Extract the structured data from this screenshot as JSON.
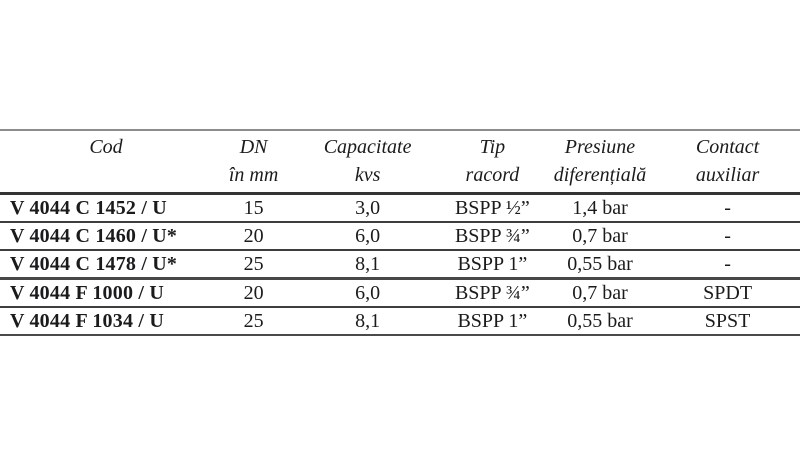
{
  "document": {
    "kind": "valve-specification-table"
  },
  "colors": {
    "background": "#ffffff",
    "text": "#1b1b1d",
    "rule_top_gray": "#8d8d8d",
    "rule_dark": "#343434"
  },
  "table": {
    "columns": [
      {
        "line1": "Cod",
        "line2": ""
      },
      {
        "line1": "DN",
        "line2": "în mm"
      },
      {
        "line1": "Capacitate",
        "line2": "kvs"
      },
      {
        "line1": "Tip",
        "line2": "racord"
      },
      {
        "line1": "Presiune",
        "line2": "diferențială"
      },
      {
        "line1": "Contact",
        "line2": "auxiliar"
      }
    ],
    "rows": [
      [
        "V 4044 C 1452 / U",
        "15",
        "3,0",
        "BSPP ½”",
        "1,4 bar",
        "-"
      ],
      [
        "V 4044 C 1460 / U*",
        "20",
        "6,0",
        "BSPP ¾”",
        "0,7 bar",
        "-"
      ],
      [
        "V 4044 C 1478 / U*",
        "25",
        "8,1",
        "BSPP 1”",
        "0,55 bar",
        "-"
      ],
      [
        "V 4044 F 1000 / U",
        "20",
        "6,0",
        "BSPP ¾”",
        "0,7 bar",
        "SPDT"
      ],
      [
        "V 4044 F 1034 / U",
        "25",
        "8,1",
        "BSPP 1”",
        "0,55 bar",
        "SPST"
      ]
    ]
  }
}
